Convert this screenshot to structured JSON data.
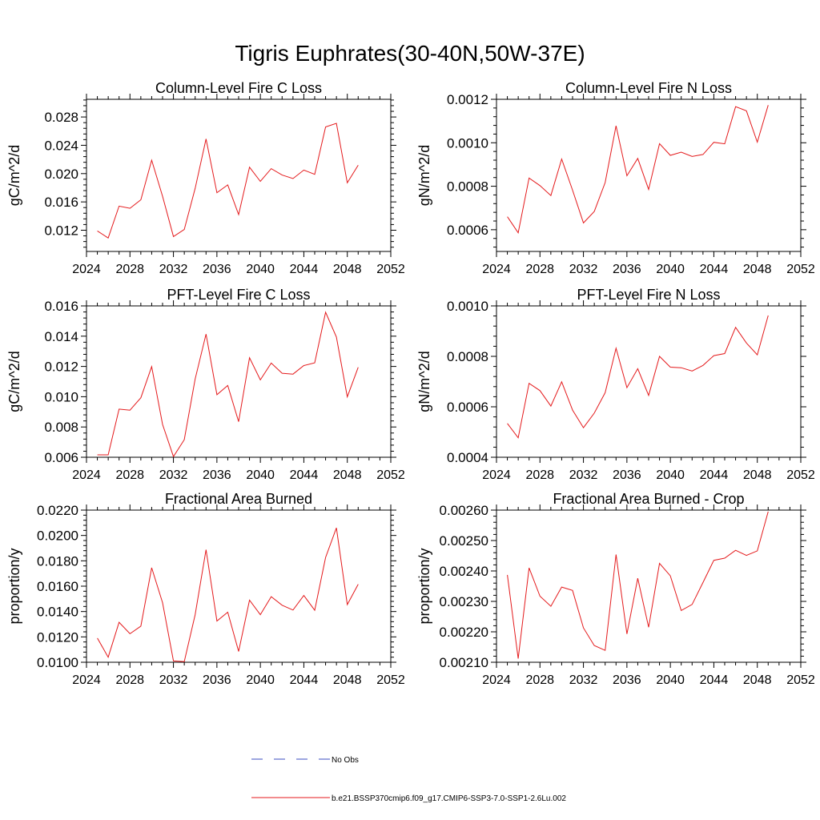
{
  "figure": {
    "title": "Tigris Euphrates(30-40N,50W-37E)",
    "series_color": "#e41a1c",
    "obs_color": "#3b4cc0"
  },
  "legend": {
    "obs_label": "No Obs",
    "model_label": "b.e21.BSSP370cmip6.f09_g17.CMIP6-SSP3-7.0-SSP1-2.6Lu.002"
  },
  "chart_data": [
    {
      "type": "line",
      "title": "Column-Level Fire C Loss",
      "ylabel": "gC/m^2/d",
      "xlim": [
        2024,
        2052
      ],
      "ylim": [
        0.009,
        0.0305
      ],
      "xticks": [
        2024,
        2028,
        2032,
        2036,
        2040,
        2044,
        2048,
        2052
      ],
      "xtick_labels": [
        "2024",
        "2028",
        "2032",
        "2036",
        "2040",
        "2044",
        "2048",
        "2052"
      ],
      "yticks": [
        0.012,
        0.016,
        0.02,
        0.024,
        0.028
      ],
      "ytick_labels": [
        "0.012",
        "0.016",
        "0.020",
        "0.024",
        "0.028"
      ],
      "x": [
        2025,
        2026,
        2027,
        2028,
        2029,
        2030,
        2031,
        2032,
        2033,
        2034,
        2035,
        2036,
        2037,
        2038,
        2039,
        2040,
        2041,
        2042,
        2043,
        2044,
        2045,
        2046,
        2047,
        2048,
        2049
      ],
      "series": [
        {
          "values": [
            0.0119,
            0.0109,
            0.0154,
            0.0151,
            0.0163,
            0.0219,
            0.0168,
            0.0111,
            0.0121,
            0.0179,
            0.0249,
            0.0173,
            0.0184,
            0.0142,
            0.0209,
            0.0189,
            0.0207,
            0.0198,
            0.0193,
            0.0205,
            0.0199,
            0.0266,
            0.0271,
            0.0187,
            0.0212
          ]
        }
      ]
    },
    {
      "type": "line",
      "title": "Column-Level Fire N Loss",
      "ylabel": "gN/m^2/d",
      "xlim": [
        2024,
        2052
      ],
      "ylim": [
        0.0005,
        0.0012
      ],
      "xticks": [
        2024,
        2028,
        2032,
        2036,
        2040,
        2044,
        2048,
        2052
      ],
      "xtick_labels": [
        "2024",
        "2028",
        "2032",
        "2036",
        "2040",
        "2044",
        "2048",
        "2052"
      ],
      "yticks": [
        0.0006,
        0.0008,
        0.001,
        0.0012
      ],
      "ytick_labels": [
        "0.0006",
        "0.0008",
        "0.0010",
        "0.0012"
      ],
      "x": [
        2025,
        2026,
        2027,
        2028,
        2029,
        2030,
        2031,
        2032,
        2033,
        2034,
        2035,
        2036,
        2037,
        2038,
        2039,
        2040,
        2041,
        2042,
        2043,
        2044,
        2045,
        2046,
        2047,
        2048,
        2049
      ],
      "series": [
        {
          "values": [
            0.00066,
            0.000586,
            0.000838,
            0.000803,
            0.000757,
            0.000925,
            0.000782,
            0.000631,
            0.000684,
            0.000817,
            0.001078,
            0.000848,
            0.000928,
            0.000785,
            0.000996,
            0.000942,
            0.000957,
            0.000937,
            0.000946,
            0.001002,
            0.000995,
            0.001166,
            0.001147,
            0.001003,
            0.001173
          ]
        }
      ]
    },
    {
      "type": "line",
      "title": "PFT-Level Fire C Loss",
      "ylabel": "gC/m^2/d",
      "xlim": [
        2024,
        2052
      ],
      "ylim": [
        0.006,
        0.016
      ],
      "xticks": [
        2024,
        2028,
        2032,
        2036,
        2040,
        2044,
        2048,
        2052
      ],
      "xtick_labels": [
        "2024",
        "2028",
        "2032",
        "2036",
        "2040",
        "2044",
        "2048",
        "2052"
      ],
      "yticks": [
        0.006,
        0.008,
        0.01,
        0.012,
        0.014,
        0.016
      ],
      "ytick_labels": [
        "0.006",
        "0.008",
        "0.010",
        "0.012",
        "0.014",
        "0.016"
      ],
      "x": [
        2025,
        2026,
        2027,
        2028,
        2029,
        2030,
        2031,
        2032,
        2033,
        2034,
        2035,
        2036,
        2037,
        2038,
        2039,
        2040,
        2041,
        2042,
        2043,
        2044,
        2045,
        2046,
        2047,
        2048,
        2049
      ],
      "series": [
        {
          "values": [
            0.00616,
            0.00616,
            0.00918,
            0.00911,
            0.00993,
            0.01199,
            0.00817,
            0.00604,
            0.00716,
            0.01117,
            0.01414,
            0.01013,
            0.01074,
            0.00835,
            0.01257,
            0.01111,
            0.01222,
            0.01155,
            0.01149,
            0.01206,
            0.01224,
            0.01558,
            0.01394,
            0.00999,
            0.01194
          ]
        }
      ]
    },
    {
      "type": "line",
      "title": "PFT-Level Fire N Loss",
      "ylabel": "gN/m^2/d",
      "xlim": [
        2024,
        2052
      ],
      "ylim": [
        0.0004,
        0.001
      ],
      "xticks": [
        2024,
        2028,
        2032,
        2036,
        2040,
        2044,
        2048,
        2052
      ],
      "xtick_labels": [
        "2024",
        "2028",
        "2032",
        "2036",
        "2040",
        "2044",
        "2048",
        "2052"
      ],
      "yticks": [
        0.0004,
        0.0006,
        0.0008,
        0.001
      ],
      "ytick_labels": [
        "0.0004",
        "0.0006",
        "0.0008",
        "0.0010"
      ],
      "x": [
        2025,
        2026,
        2027,
        2028,
        2029,
        2030,
        2031,
        2032,
        2033,
        2034,
        2035,
        2036,
        2037,
        2038,
        2039,
        2040,
        2041,
        2042,
        2043,
        2044,
        2045,
        2046,
        2047,
        2048,
        2049
      ],
      "series": [
        {
          "values": [
            0.000534,
            0.000477,
            0.000693,
            0.000664,
            0.000603,
            0.000699,
            0.000587,
            0.000517,
            0.000575,
            0.000656,
            0.000832,
            0.000676,
            0.000751,
            0.000645,
            0.0008,
            0.000757,
            0.000755,
            0.000742,
            0.000764,
            0.000803,
            0.000811,
            0.000915,
            0.000853,
            0.000806,
            0.000962
          ]
        }
      ]
    },
    {
      "type": "line",
      "title": "Fractional Area Burned",
      "ylabel": "proportion/y",
      "xlim": [
        2024,
        2052
      ],
      "ylim": [
        0.01,
        0.022
      ],
      "xticks": [
        2024,
        2028,
        2032,
        2036,
        2040,
        2044,
        2048,
        2052
      ],
      "xtick_labels": [
        "2024",
        "2028",
        "2032",
        "2036",
        "2040",
        "2044",
        "2048",
        "2052"
      ],
      "yticks": [
        0.01,
        0.012,
        0.014,
        0.016,
        0.018,
        0.02,
        0.022
      ],
      "ytick_labels": [
        "0.0100",
        "0.0120",
        "0.0140",
        "0.0160",
        "0.0180",
        "0.0200",
        "0.0220"
      ],
      "x": [
        2025,
        2026,
        2027,
        2028,
        2029,
        2030,
        2031,
        2032,
        2033,
        2034,
        2035,
        2036,
        2037,
        2038,
        2039,
        2040,
        2041,
        2042,
        2043,
        2044,
        2045,
        2046,
        2047,
        2048,
        2049
      ],
      "series": [
        {
          "values": [
            0.0119,
            0.0104,
            0.01315,
            0.01225,
            0.01285,
            0.01745,
            0.0147,
            0.0101,
            0.01005,
            0.01375,
            0.01888,
            0.01325,
            0.01395,
            0.01085,
            0.0149,
            0.01375,
            0.01517,
            0.0145,
            0.01412,
            0.01527,
            0.0141,
            0.01827,
            0.0206,
            0.01455,
            0.01615
          ]
        }
      ]
    },
    {
      "type": "line",
      "title": "Fractional Area Burned - Crop",
      "ylabel": "proportion/y",
      "xlim": [
        2024,
        2052
      ],
      "ylim": [
        0.0021,
        0.0026
      ],
      "xticks": [
        2024,
        2028,
        2032,
        2036,
        2040,
        2044,
        2048,
        2052
      ],
      "xtick_labels": [
        "2024",
        "2028",
        "2032",
        "2036",
        "2040",
        "2044",
        "2048",
        "2052"
      ],
      "yticks": [
        0.0021,
        0.0022,
        0.0023,
        0.0024,
        0.0025,
        0.0026
      ],
      "ytick_labels": [
        "0.00210",
        "0.00220",
        "0.00230",
        "0.00240",
        "0.00250",
        "0.00260"
      ],
      "x": [
        2025,
        2026,
        2027,
        2028,
        2029,
        2030,
        2031,
        2032,
        2033,
        2034,
        2035,
        2036,
        2037,
        2038,
        2039,
        2040,
        2041,
        2042,
        2043,
        2044,
        2045,
        2046,
        2047,
        2048,
        2049
      ],
      "series": [
        {
          "values": [
            0.002387,
            0.002112,
            0.00241,
            0.002317,
            0.002284,
            0.002347,
            0.002336,
            0.002213,
            0.002155,
            0.002139,
            0.002454,
            0.002193,
            0.002376,
            0.002215,
            0.002425,
            0.002384,
            0.00227,
            0.00229,
            0.002362,
            0.002435,
            0.002442,
            0.002468,
            0.002451,
            0.002466,
            0.002595
          ]
        }
      ]
    }
  ]
}
